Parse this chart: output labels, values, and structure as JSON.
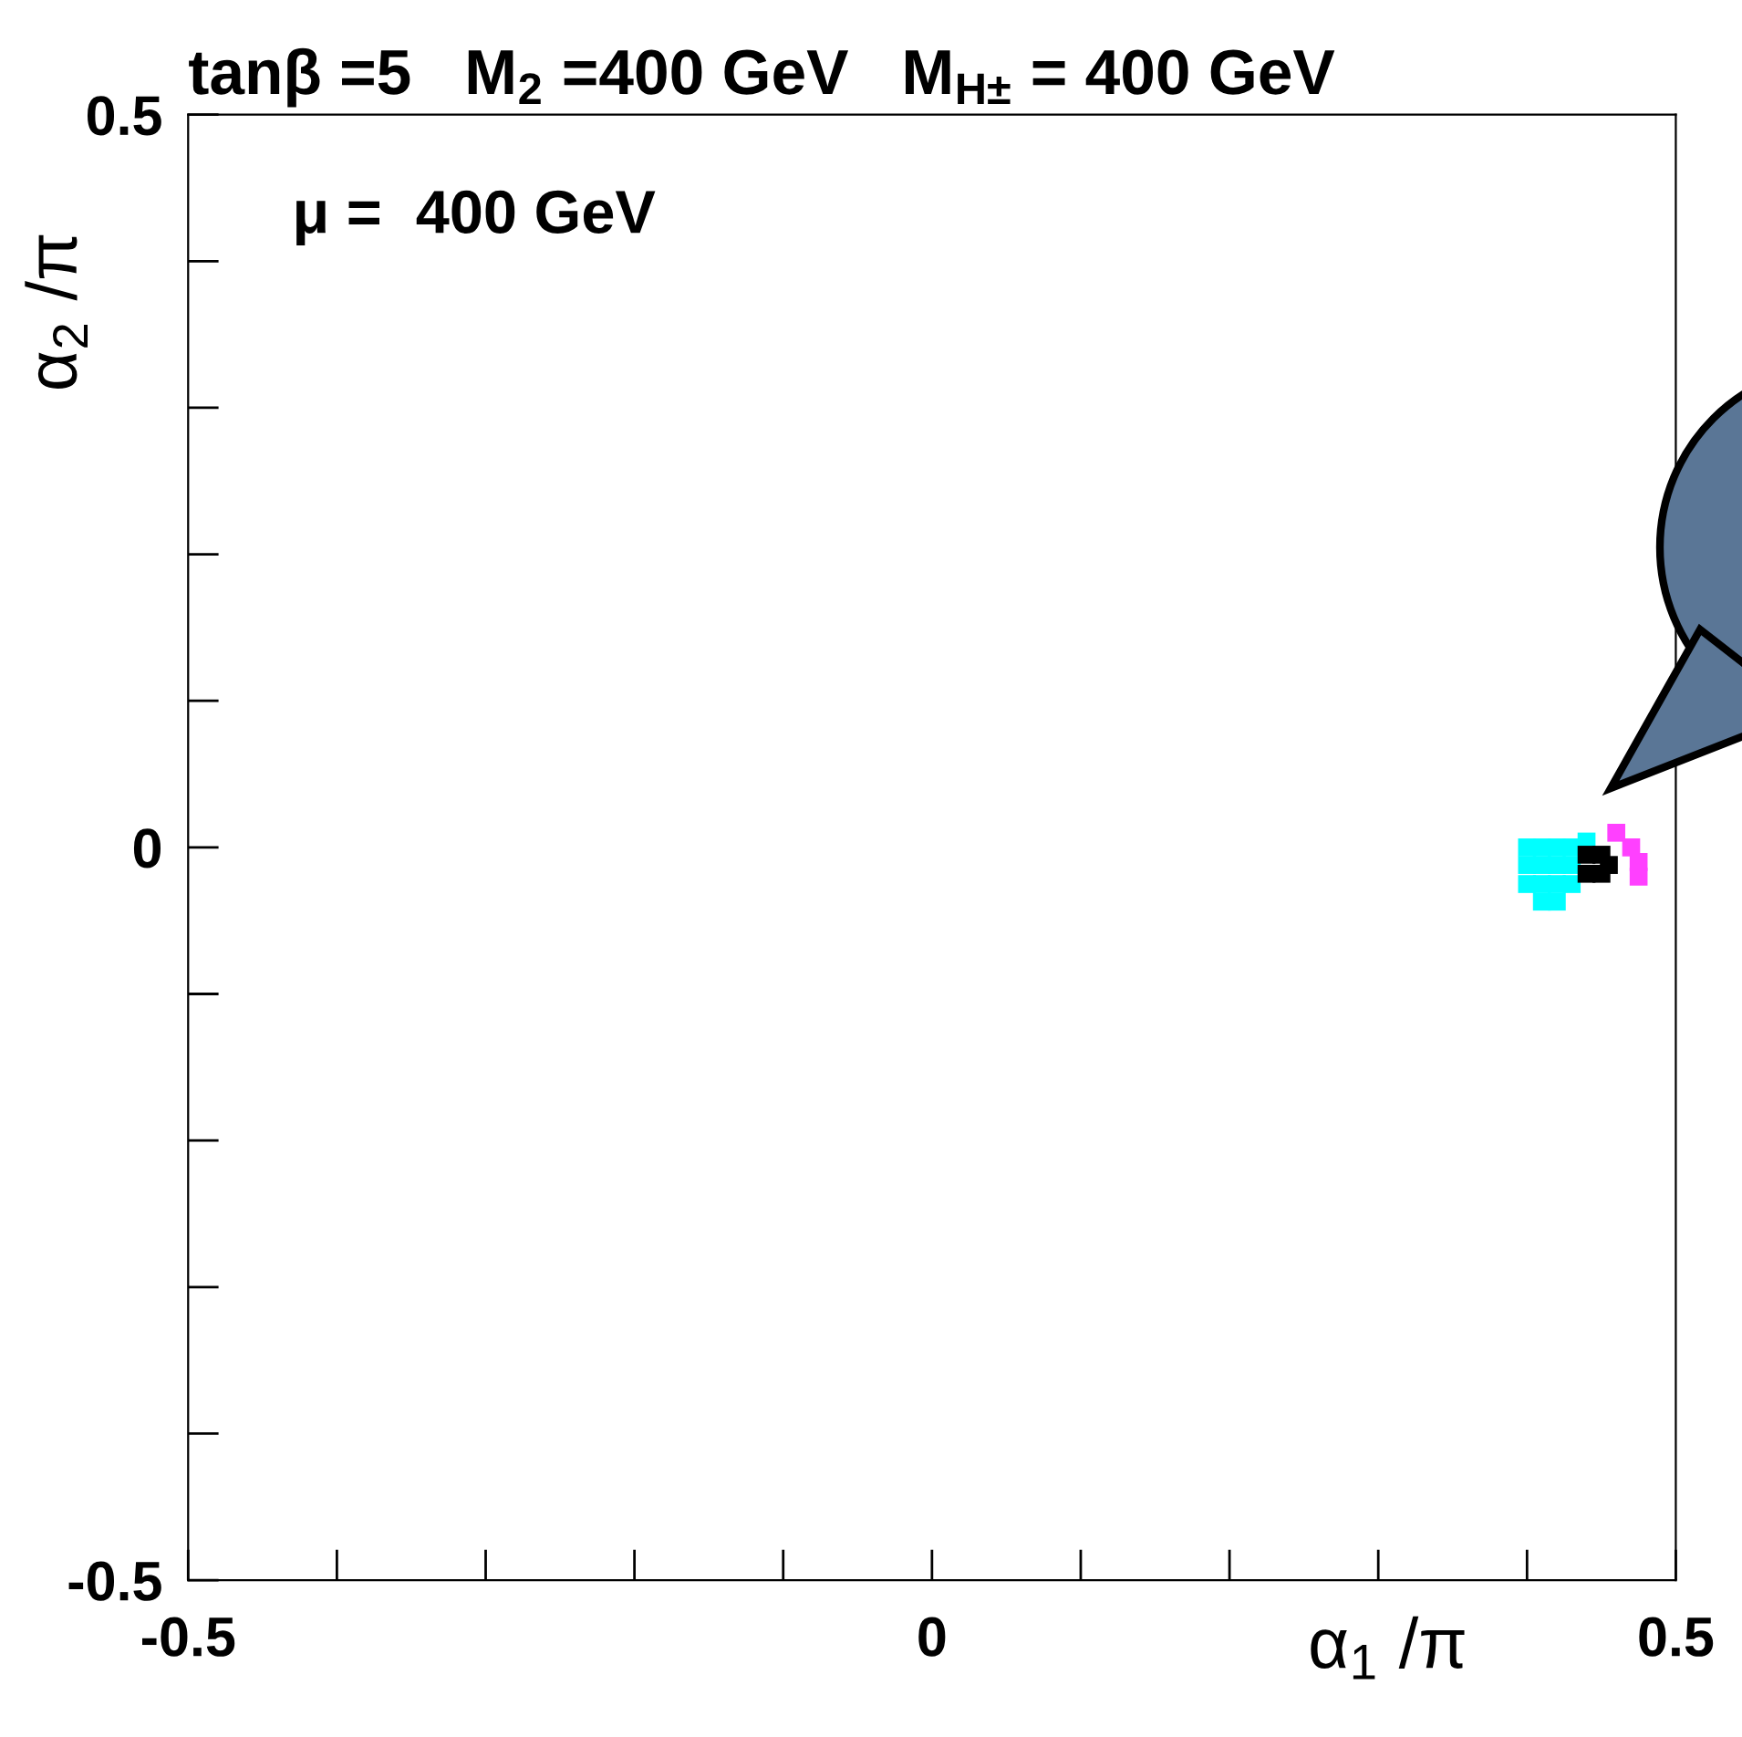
{
  "chart_data": {
    "type": "scatter",
    "title": "tanβ =5   M$_{2}$ =400 GeV   M$_{H±}$ = 400 GeV",
    "xlabel": "α$_{1}$ /π",
    "ylabel": "α$_{2}$ /π",
    "annotations": [
      "μ =  400 GeV"
    ],
    "marker": "square",
    "grid": false,
    "legend": false,
    "xlim": [
      -0.5,
      0.5
    ],
    "ylim": [
      -0.5,
      0.5
    ],
    "xticks": [
      -0.5,
      0,
      0.5
    ],
    "yticks": [
      -0.5,
      0,
      0.5
    ],
    "series": [
      {
        "color": "#00ffff",
        "x": [
          0.4,
          0.41,
          0.42,
          0.43,
          0.44,
          0.4,
          0.41,
          0.42,
          0.43,
          0.4,
          0.41,
          0.42,
          0.43,
          0.41,
          0.42
        ],
        "values": [
          0.0,
          0.0,
          0.0,
          0.0,
          0.004,
          -0.012,
          -0.012,
          -0.012,
          -0.012,
          -0.025,
          -0.025,
          -0.025,
          -0.025,
          -0.037,
          -0.037
        ]
      },
      {
        "color": "#ff40ff",
        "x": [
          0.46,
          0.47,
          0.475,
          0.475
        ],
        "values": [
          0.01,
          0.0,
          -0.01,
          -0.02
        ]
      },
      {
        "color": "#000000",
        "x": [
          0.44,
          0.45,
          0.44,
          0.45,
          0.455
        ],
        "values": [
          -0.005,
          -0.005,
          -0.018,
          -0.018,
          -0.012
        ]
      }
    ]
  }
}
